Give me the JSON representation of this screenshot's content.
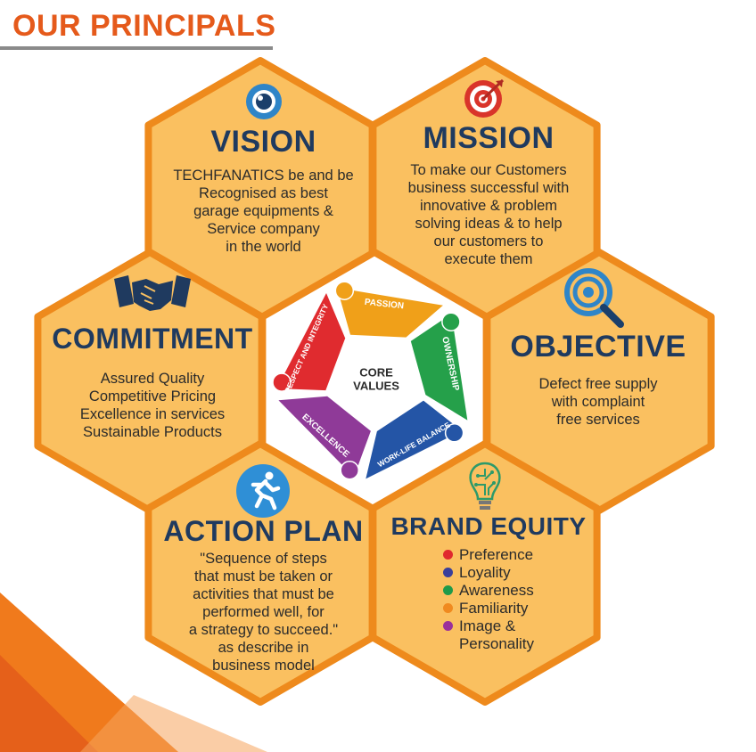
{
  "page": {
    "title": "OUR PRINCIPALS"
  },
  "colors": {
    "hex_fill": "#fac060",
    "hex_border": "#ee8a1c",
    "title_orange": "#e55a1b",
    "heading_navy": "#1f3a5f"
  },
  "cells": {
    "vision": {
      "title": "VISION",
      "icon": "eye-icon",
      "body": "TECHFANATICS be and be\nRecognised as best\ngarage equipments &\nService company\nin the world"
    },
    "mission": {
      "title": "MISSION",
      "icon": "target-icon",
      "body": "To make our Customers\nbusiness successful with\ninnovative & problem\nsolving ideas & to help\nour customers to\nexecute them"
    },
    "commitment": {
      "title": "COMMITMENT",
      "icon": "handshake-icon",
      "body": "Assured Quality\nCompetitive Pricing\nExcellence in services\nSustainable Products"
    },
    "objective": {
      "title": "OBJECTIVE",
      "icon": "magnifier-icon",
      "body": "Defect free supply\nwith complaint\nfree services"
    },
    "action_plan": {
      "title": "ACTION PLAN",
      "icon": "runner-icon",
      "body": "\"Sequence of steps\nthat must be taken or\nactivities that must be\nperformed well, for\na strategy to succeed.\"\nas describe in\nbusiness model"
    },
    "brand_equity": {
      "title": "BRAND EQUITY",
      "icon": "lightbulb-icon",
      "items": [
        {
          "label": "Preference",
          "color": "#e0282e"
        },
        {
          "label": "Loyality",
          "color": "#3a3f9a"
        },
        {
          "label": "Awareness",
          "color": "#1f9a4a"
        },
        {
          "label": "Familiarity",
          "color": "#f08a1f"
        },
        {
          "label": "Image &\nPersonality",
          "color": "#9b2f9b"
        }
      ]
    }
  },
  "core": {
    "center": "CORE\nVALUES",
    "values": [
      {
        "label": "Passion",
        "color": "#f0a019"
      },
      {
        "label": "Ownership",
        "color": "#25a04a"
      },
      {
        "label": "Work-Life Balance",
        "color": "#2455a6"
      },
      {
        "label": "Excellence",
        "color": "#8f3a98"
      },
      {
        "label": "Respect and Integrity",
        "color": "#e02b2f"
      }
    ]
  }
}
